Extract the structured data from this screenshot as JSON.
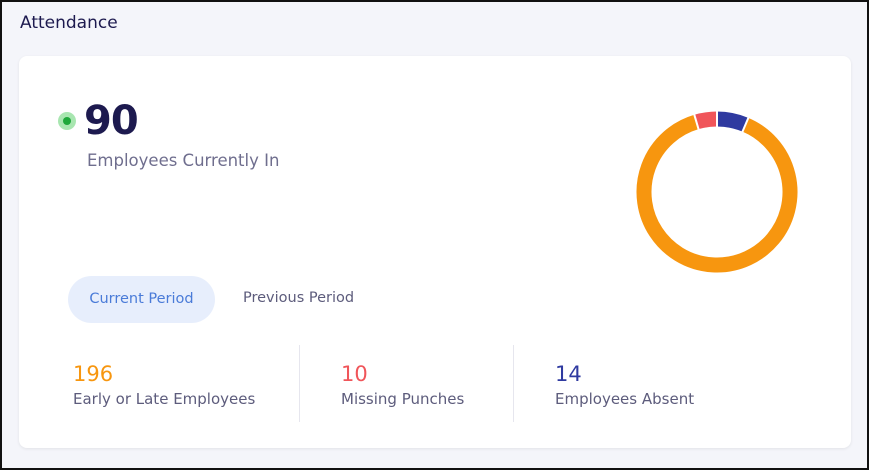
{
  "header": {
    "title": "Attendance"
  },
  "summary": {
    "value": 90,
    "label": "Employees Currently In"
  },
  "tabs": [
    "Current Period",
    "Previous Period"
  ],
  "stats": [
    {
      "value": 196,
      "label": "Early or Late Employees",
      "color": "#f7960f"
    },
    {
      "value": 10,
      "label": "Missing Punches",
      "color": "#f0555a"
    },
    {
      "value": 14,
      "label": "Employees Absent",
      "color": "#2f3aa0"
    }
  ]
}
